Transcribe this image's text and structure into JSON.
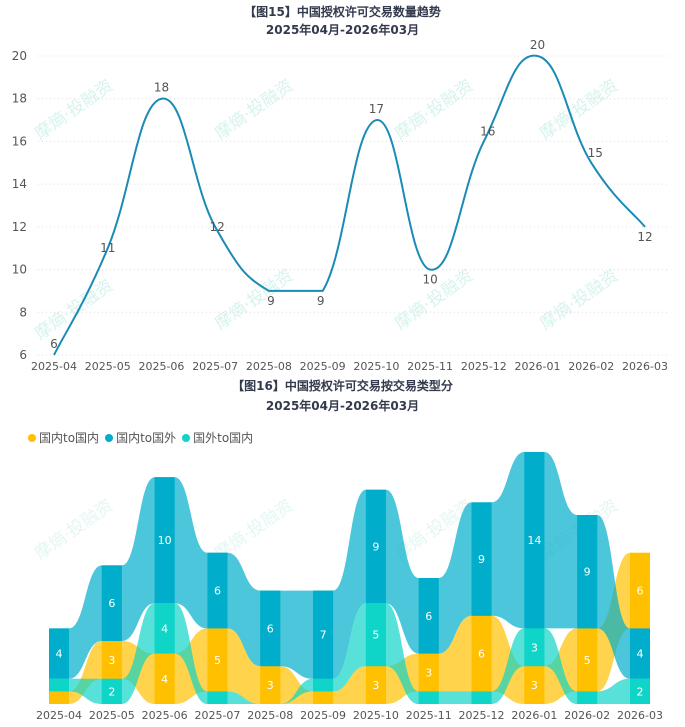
{
  "watermark": "摩熵·投融资",
  "chart_data": [
    {
      "type": "line",
      "title": "【图15】中国授权许可交易数量趋势",
      "subtitle": "2025年04月-2026年03月",
      "categories": [
        "2025-04",
        "2025-05",
        "2025-06",
        "2025-07",
        "2025-08",
        "2025-09",
        "2025-10",
        "2025-11",
        "2025-12",
        "2026-01",
        "2026-02",
        "2026-03"
      ],
      "values": [
        6,
        11,
        18,
        12,
        9,
        9,
        17,
        10,
        16,
        20,
        15,
        12
      ],
      "yticks": [
        6,
        8,
        10,
        12,
        14,
        16,
        18,
        20
      ],
      "ylim": [
        6,
        20
      ],
      "grid": true,
      "color": "#1a8bb5"
    },
    {
      "type": "bar",
      "stacked": true,
      "sorted_per_column": true,
      "title": "【图16】中国授权许可交易按交易类型分",
      "subtitle": "2025年04月-2026年03月",
      "legend_position": "top-left",
      "categories": [
        "2025-04",
        "2025-05",
        "2025-06",
        "2025-07",
        "2025-08",
        "2025-09",
        "2025-10",
        "2025-11",
        "2025-12",
        "2026-01",
        "2026-02",
        "2026-03"
      ],
      "series": [
        {
          "name": "国内to国内",
          "color": "#ffc000",
          "values": [
            1,
            3,
            4,
            5,
            3,
            1,
            3,
            3,
            6,
            3,
            5,
            6
          ]
        },
        {
          "name": "国内to国外",
          "color": "#00aecb",
          "values": [
            4,
            6,
            10,
            6,
            6,
            7,
            9,
            6,
            9,
            14,
            9,
            4
          ]
        },
        {
          "name": "国外to国内",
          "color": "#0fd4c8",
          "values": [
            1,
            2,
            4,
            1,
            0,
            1,
            5,
            1,
            1,
            3,
            1,
            2
          ]
        }
      ]
    }
  ]
}
